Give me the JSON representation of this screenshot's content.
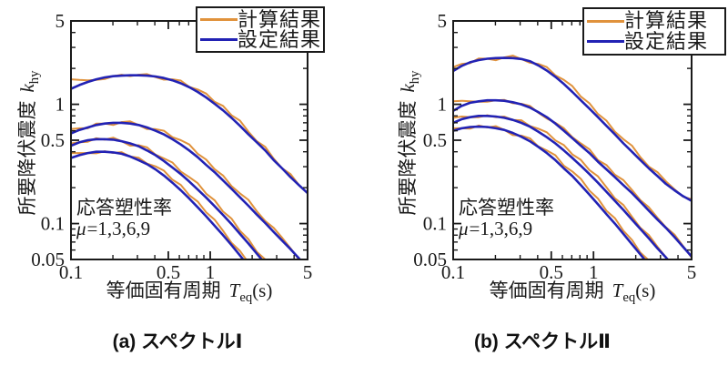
{
  "page": {
    "background": "#ffffff"
  },
  "colors": {
    "calc": "#E0923C",
    "set": "#2222B4",
    "axis": "#1a1a1a",
    "text": "#1a1a1a"
  },
  "legend": {
    "items": [
      {
        "label": "計算結果",
        "series_key": "calc",
        "color": "#E0923C"
      },
      {
        "label": "設定結果",
        "series_key": "set",
        "color": "#2222B4"
      }
    ],
    "position": "top-right"
  },
  "annotation": {
    "line1": "応答塑性率",
    "mu_symbol": "μ",
    "mu_values": "=1,3,6,9"
  },
  "axis_text": {
    "x_text": "等価固有周期",
    "x_var": "T",
    "x_sub": "eq",
    "x_unit": "(s)",
    "y_text": "所要降伏震度",
    "y_var": "k",
    "y_sub": "hy"
  },
  "chart_data": [
    {
      "type": "line",
      "title": "(a) スペクトルⅠ",
      "xlabel": "等価固有周期 Teq(s)",
      "ylabel": "所要降伏震度 khy",
      "xscale": "log",
      "yscale": "log",
      "grid": false,
      "xlim": [
        0.1,
        5
      ],
      "ylim": [
        0.05,
        5
      ],
      "legend_position": "top-right",
      "annotation": "応答塑性率 μ=1,3,6,9",
      "x_ticks": {
        "major": [
          0.1,
          0.5,
          1,
          5
        ],
        "labels": [
          "0.1",
          "0.5",
          "1",
          "5"
        ],
        "minor": [
          0.2,
          0.3,
          0.4,
          0.6,
          0.7,
          0.8,
          0.9,
          2,
          3,
          4
        ]
      },
      "y_ticks": {
        "major": [
          5,
          1,
          0.5,
          0.1,
          0.05
        ],
        "labels": [
          "5",
          "1",
          "0.5",
          "0.1",
          "0.05"
        ],
        "minor": [
          4,
          3,
          2,
          0.9,
          0.8,
          0.7,
          0.6,
          0.4,
          0.3,
          0.2,
          0.09,
          0.08,
          0.07,
          0.06
        ]
      },
      "x": [
        0.1,
        0.115,
        0.132,
        0.152,
        0.175,
        0.201,
        0.231,
        0.266,
        0.306,
        0.352,
        0.404,
        0.465,
        0.535,
        0.615,
        0.707,
        0.813,
        0.935,
        1.075,
        1.236,
        1.421,
        1.634,
        1.879,
        2.16,
        2.484,
        2.856,
        3.284,
        3.776,
        4.342,
        5.0
      ],
      "series": [
        {
          "key": "calc",
          "name": "計算結果",
          "mu": 1,
          "color": "#E0923C",
          "values": [
            1.62,
            1.6,
            1.59,
            1.6,
            1.63,
            1.72,
            1.77,
            1.72,
            1.77,
            1.79,
            1.69,
            1.61,
            1.62,
            1.58,
            1.4,
            1.33,
            1.23,
            1.05,
            0.97,
            0.81,
            0.73,
            0.59,
            0.49,
            0.44,
            0.35,
            0.29,
            0.26,
            0.21,
            0.18
          ]
        },
        {
          "key": "calc",
          "name": "計算結果",
          "mu": 3,
          "color": "#E0923C",
          "values": [
            0.62,
            0.63,
            0.63,
            0.69,
            0.69,
            0.67,
            0.71,
            0.72,
            0.67,
            0.62,
            0.62,
            0.6,
            0.53,
            0.5,
            0.46,
            0.385,
            0.344,
            0.286,
            0.253,
            0.206,
            0.179,
            0.158,
            0.127,
            0.105,
            0.092,
            0.076,
            0.062,
            0.05,
            0.044
          ]
        },
        {
          "key": "calc",
          "name": "計算結果",
          "mu": 6,
          "color": "#E0923C",
          "values": [
            0.47,
            0.48,
            0.485,
            0.52,
            0.505,
            0.525,
            0.49,
            0.45,
            0.454,
            0.435,
            0.379,
            0.352,
            0.325,
            0.273,
            0.245,
            0.218,
            0.178,
            0.157,
            0.126,
            0.11,
            0.087,
            0.074,
            0.058,
            0.05,
            0.04,
            0.031,
            0.027,
            0.021,
            0.018
          ]
        },
        {
          "key": "calc",
          "name": "計算結果",
          "mu": 9,
          "color": "#E0923C",
          "values": [
            0.39,
            0.39,
            0.39,
            0.388,
            0.404,
            0.391,
            0.397,
            0.365,
            0.357,
            0.318,
            0.302,
            0.278,
            0.233,
            0.211,
            0.173,
            0.153,
            0.124,
            0.108,
            0.087,
            0.069,
            0.059,
            0.047,
            0.037,
            0.031,
            0.025,
            0.02,
            0.017,
            0.013,
            0.011
          ]
        },
        {
          "key": "set",
          "name": "設定結果",
          "mu": 1,
          "color": "#2222B4",
          "values": [
            1.35,
            1.45,
            1.54,
            1.62,
            1.68,
            1.72,
            1.74,
            1.75,
            1.75,
            1.74,
            1.71,
            1.66,
            1.59,
            1.5,
            1.39,
            1.27,
            1.14,
            1.01,
            0.89,
            0.77,
            0.66,
            0.56,
            0.48,
            0.41,
            0.34,
            0.29,
            0.245,
            0.21,
            0.18
          ]
        },
        {
          "key": "set",
          "name": "設定結果",
          "mu": 3,
          "color": "#2222B4",
          "values": [
            0.57,
            0.61,
            0.64,
            0.67,
            0.69,
            0.7,
            0.7,
            0.69,
            0.67,
            0.64,
            0.6,
            0.56,
            0.51,
            0.46,
            0.41,
            0.36,
            0.31,
            0.27,
            0.23,
            0.196,
            0.166,
            0.141,
            0.119,
            0.101,
            0.085,
            0.072,
            0.061,
            0.051,
            0.043
          ]
        },
        {
          "key": "set",
          "name": "設定結果",
          "mu": 6,
          "color": "#2222B4",
          "values": [
            0.45,
            0.48,
            0.5,
            0.51,
            0.51,
            0.505,
            0.49,
            0.47,
            0.445,
            0.41,
            0.375,
            0.335,
            0.295,
            0.26,
            0.225,
            0.193,
            0.165,
            0.14,
            0.118,
            0.099,
            0.082,
            0.068,
            0.056,
            0.046,
            0.038,
            0.031,
            0.026,
            0.021,
            0.018
          ]
        },
        {
          "key": "set",
          "name": "設定結果",
          "mu": 9,
          "color": "#2222B4",
          "values": [
            0.355,
            0.375,
            0.39,
            0.4,
            0.4,
            0.395,
            0.385,
            0.365,
            0.34,
            0.315,
            0.285,
            0.253,
            0.22,
            0.19,
            0.162,
            0.137,
            0.115,
            0.096,
            0.08,
            0.066,
            0.054,
            0.044,
            0.036,
            0.029,
            0.024,
            0.02,
            0.016,
            0.013,
            0.011
          ]
        }
      ]
    },
    {
      "type": "line",
      "title": "(b) スペクトルⅡ",
      "xlabel": "等価固有周期 Teq(s)",
      "ylabel": "所要降伏震度 khy",
      "xscale": "log",
      "yscale": "log",
      "grid": false,
      "xlim": [
        0.1,
        5
      ],
      "ylim": [
        0.05,
        5
      ],
      "legend_position": "top-right",
      "annotation": "応答塑性率 μ=1,3,6,9",
      "x_ticks": {
        "major": [
          0.1,
          0.5,
          1,
          5
        ],
        "labels": [
          "0.1",
          "0.5",
          "1",
          "5"
        ],
        "minor": [
          0.2,
          0.3,
          0.4,
          0.6,
          0.7,
          0.8,
          0.9,
          2,
          3,
          4
        ]
      },
      "y_ticks": {
        "major": [
          5,
          1,
          0.5,
          0.1,
          0.05
        ],
        "labels": [
          "5",
          "1",
          "0.5",
          "0.1",
          "0.05"
        ],
        "minor": [
          4,
          3,
          2,
          0.9,
          0.8,
          0.7,
          0.6,
          0.4,
          0.3,
          0.2,
          0.09,
          0.08,
          0.07,
          0.06
        ]
      },
      "x": [
        0.1,
        0.115,
        0.132,
        0.152,
        0.175,
        0.201,
        0.231,
        0.266,
        0.306,
        0.352,
        0.404,
        0.465,
        0.535,
        0.615,
        0.707,
        0.813,
        0.935,
        1.075,
        1.236,
        1.421,
        1.634,
        1.879,
        2.16,
        2.484,
        2.856,
        3.284,
        3.776,
        4.342,
        5.0
      ],
      "series": [
        {
          "key": "calc",
          "name": "計算結果",
          "mu": 1,
          "color": "#E0923C",
          "values": [
            2.05,
            2.18,
            2.21,
            2.42,
            2.41,
            2.34,
            2.47,
            2.56,
            2.4,
            2.23,
            2.18,
            2.05,
            1.75,
            1.6,
            1.42,
            1.16,
            1.02,
            0.83,
            0.73,
            0.59,
            0.51,
            0.45,
            0.36,
            0.3,
            0.27,
            0.226,
            0.194,
            0.168,
            0.16
          ]
        },
        {
          "key": "calc",
          "name": "計算結果",
          "mu": 3,
          "color": "#E0923C",
          "values": [
            1.06,
            1.07,
            1.06,
            1.05,
            1.05,
            1.08,
            1.09,
            1.02,
            1.01,
            0.97,
            0.85,
            0.76,
            0.7,
            0.63,
            0.53,
            0.47,
            0.42,
            0.34,
            0.31,
            0.257,
            0.231,
            0.191,
            0.157,
            0.137,
            0.112,
            0.093,
            0.081,
            0.065,
            0.052
          ]
        },
        {
          "key": "calc",
          "name": "計算結果",
          "mu": 6,
          "color": "#E0923C",
          "values": [
            0.77,
            0.79,
            0.78,
            0.78,
            0.81,
            0.78,
            0.79,
            0.74,
            0.735,
            0.657,
            0.625,
            0.583,
            0.498,
            0.455,
            0.38,
            0.342,
            0.281,
            0.249,
            0.202,
            0.163,
            0.143,
            0.114,
            0.092,
            0.08,
            0.064,
            0.052,
            0.045,
            0.036,
            0.029
          ]
        },
        {
          "key": "calc",
          "name": "計算結果",
          "mu": 9,
          "color": "#E0923C",
          "values": [
            0.63,
            0.63,
            0.625,
            0.663,
            0.639,
            0.655,
            0.61,
            0.552,
            0.546,
            0.519,
            0.444,
            0.41,
            0.374,
            0.305,
            0.273,
            0.237,
            0.189,
            0.162,
            0.128,
            0.111,
            0.087,
            0.073,
            0.057,
            0.049,
            0.039,
            0.03,
            0.026,
            0.02,
            0.017
          ]
        },
        {
          "key": "set",
          "name": "設定結果",
          "mu": 1,
          "color": "#2222B4",
          "values": [
            1.9,
            2.1,
            2.25,
            2.35,
            2.41,
            2.44,
            2.45,
            2.44,
            2.4,
            2.3,
            2.12,
            1.92,
            1.7,
            1.48,
            1.27,
            1.08,
            0.92,
            0.78,
            0.66,
            0.56,
            0.47,
            0.4,
            0.34,
            0.29,
            0.25,
            0.215,
            0.19,
            0.17,
            0.155
          ]
        },
        {
          "key": "set",
          "name": "設定結果",
          "mu": 3,
          "color": "#2222B4",
          "values": [
            0.88,
            0.97,
            1.03,
            1.06,
            1.08,
            1.08,
            1.07,
            1.04,
            1.0,
            0.94,
            0.86,
            0.78,
            0.69,
            0.6,
            0.52,
            0.45,
            0.39,
            0.33,
            0.285,
            0.245,
            0.21,
            0.18,
            0.152,
            0.128,
            0.108,
            0.092,
            0.077,
            0.064,
            0.053
          ]
        },
        {
          "key": "set",
          "name": "設定結果",
          "mu": 6,
          "color": "#2222B4",
          "values": [
            0.7,
            0.75,
            0.78,
            0.8,
            0.8,
            0.79,
            0.77,
            0.74,
            0.7,
            0.65,
            0.59,
            0.53,
            0.47,
            0.41,
            0.355,
            0.305,
            0.26,
            0.22,
            0.185,
            0.155,
            0.13,
            0.108,
            0.09,
            0.075,
            0.062,
            0.052,
            0.043,
            0.036,
            0.03
          ]
        },
        {
          "key": "set",
          "name": "設定結果",
          "mu": 9,
          "color": "#2222B4",
          "values": [
            0.6,
            0.63,
            0.645,
            0.65,
            0.645,
            0.63,
            0.61,
            0.575,
            0.535,
            0.49,
            0.44,
            0.39,
            0.34,
            0.29,
            0.25,
            0.21,
            0.175,
            0.145,
            0.12,
            0.1,
            0.082,
            0.067,
            0.055,
            0.045,
            0.037,
            0.03,
            0.025,
            0.02,
            0.017
          ]
        }
      ]
    }
  ]
}
